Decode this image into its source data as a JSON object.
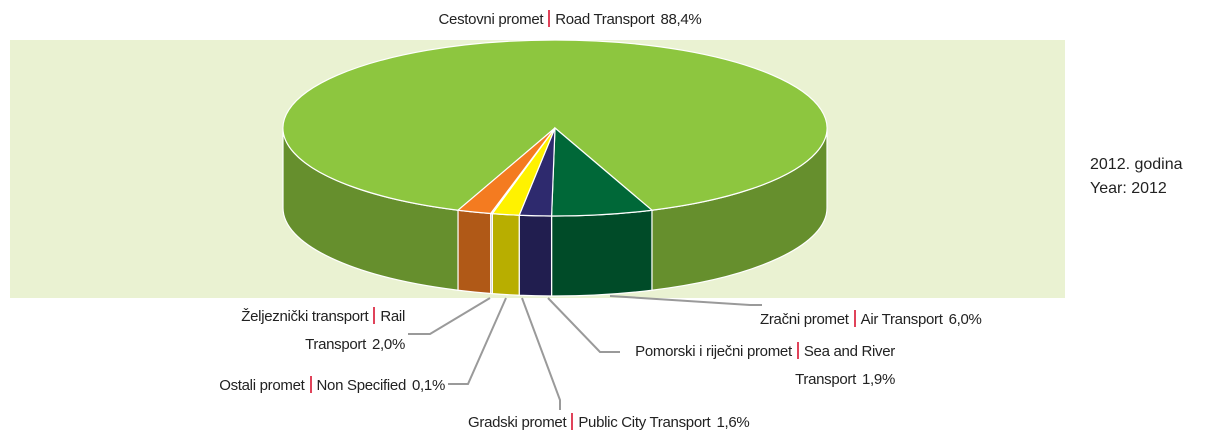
{
  "chart_data": {
    "type": "pie",
    "labels_hr": [
      "Cestovni promet",
      "Zračni promet",
      "Pomorski i riječni promet",
      "Gradski promet",
      "Ostali promet",
      "Željeznički transport"
    ],
    "labels_en": [
      "Road Transport",
      "Air Transport",
      "Sea and River Transport",
      "Public City Transport",
      "Non Specified",
      "Rail Transport"
    ],
    "values": [
      88.4,
      6.0,
      1.9,
      1.6,
      0.1,
      2.0
    ],
    "value_labels": [
      "88,4%",
      "6,0%",
      "1,9%",
      "1,6%",
      "0,1%",
      "2,0%"
    ],
    "colors": [
      "#8dc63f",
      "#006838",
      "#2e2a6e",
      "#fff200",
      "#bdbdbd",
      "#f47b20"
    ],
    "annotations": [
      "2012. godina",
      "Year: 2012"
    ]
  }
}
